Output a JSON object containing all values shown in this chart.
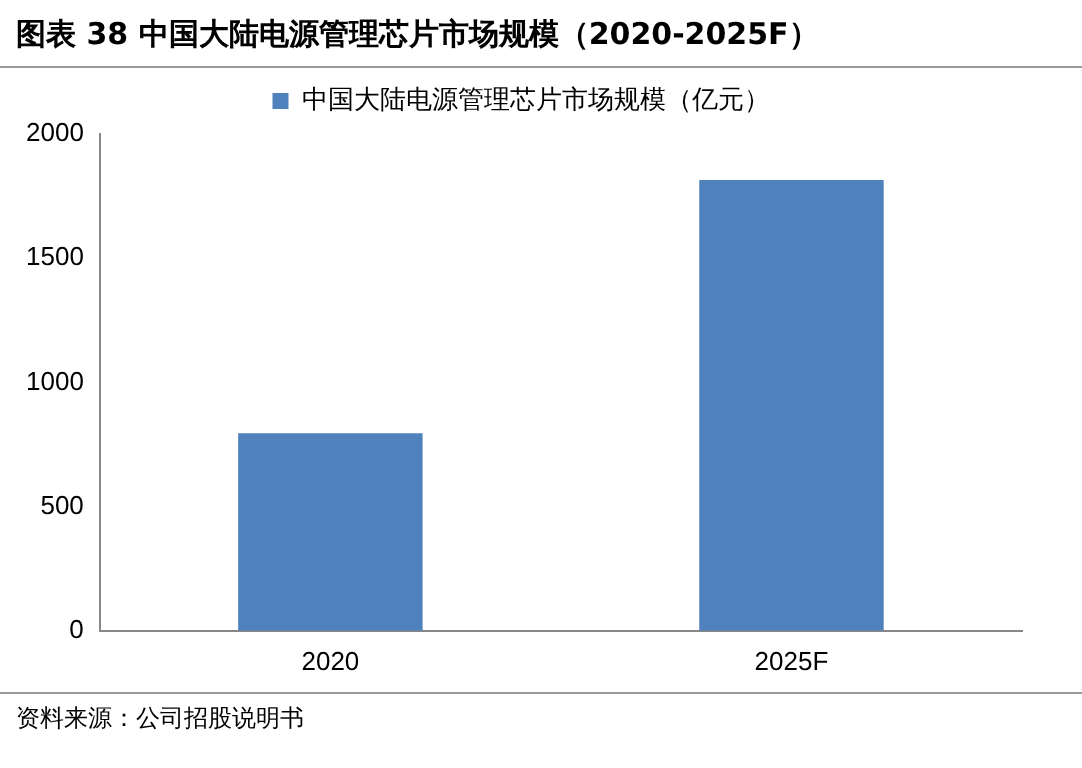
{
  "chart_data": {
    "type": "bar",
    "title": "图表 38 中国大陆电源管理芯片市场规模（2020-2025F）",
    "categories": [
      "2020",
      "2025F"
    ],
    "series": [
      {
        "name": "中国大陆电源管理芯片市场规模（亿元）",
        "color": "#4f81bd",
        "values": [
          795,
          1815
        ]
      }
    ],
    "ylim": [
      0,
      2000
    ],
    "yticks": [
      0,
      500,
      1000,
      1500,
      2000
    ],
    "grid": false,
    "legend": "top",
    "annotations": [
      "资料来源：公司招股说明书"
    ]
  }
}
